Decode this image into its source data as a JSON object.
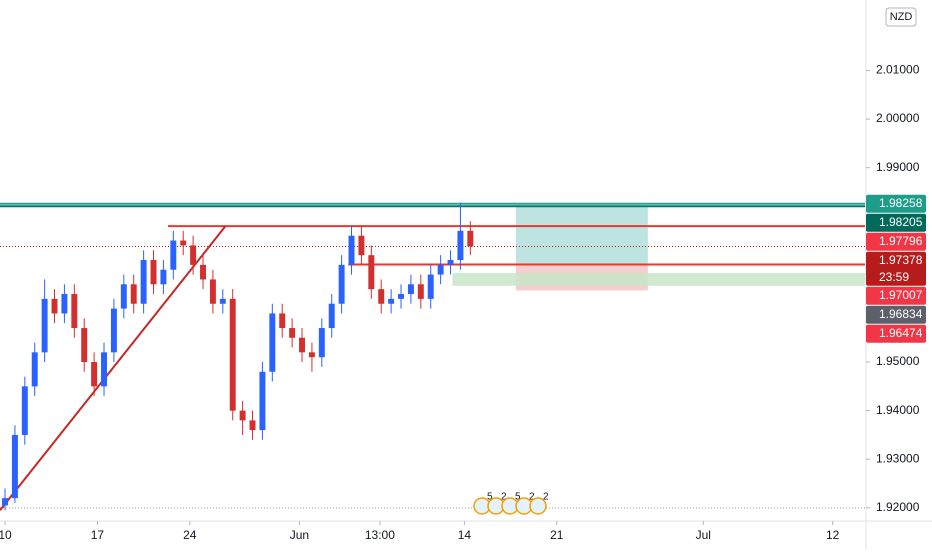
{
  "chart_data": {
    "type": "candlestick",
    "currency": "NZD",
    "x": [
      0,
      0.75,
      1.5,
      2.25,
      3,
      3.75,
      4.5,
      5.25,
      6,
      6.75,
      7.5,
      8.25,
      9,
      9.75,
      10.5,
      11.25,
      12,
      12.75,
      13.5,
      14.25,
      15,
      15.75,
      16.5,
      17.25,
      18,
      18.75,
      19.5,
      20.25,
      21,
      21.75,
      22.5,
      23.25,
      24,
      24.75,
      25.5,
      26.25,
      27,
      27.75,
      28.5,
      29.25,
      30,
      30.75,
      31.5,
      32.25,
      33,
      33.75,
      34.5,
      35.25
    ],
    "open": [
      1.9205,
      1.922,
      1.935,
      1.945,
      1.952,
      1.963,
      1.96,
      1.964,
      1.957,
      1.95,
      1.945,
      1.952,
      1.961,
      1.966,
      1.962,
      1.971,
      1.966,
      1.969,
      1.975,
      1.974,
      1.97,
      1.967,
      1.962,
      1.963,
      1.94,
      1.938,
      1.936,
      1.948,
      1.96,
      1.957,
      1.955,
      1.952,
      1.951,
      1.957,
      1.962,
      1.97,
      1.976,
      1.972,
      1.965,
      1.962,
      1.963,
      1.964,
      1.966,
      1.963,
      1.968,
      1.97,
      1.971,
      1.977
    ],
    "high": [
      1.924,
      1.937,
      1.947,
      1.954,
      1.967,
      1.965,
      1.966,
      1.966,
      1.959,
      1.952,
      1.954,
      1.963,
      1.968,
      1.968,
      1.973,
      1.973,
      1.971,
      1.977,
      1.977,
      1.976,
      1.972,
      1.969,
      1.965,
      1.965,
      1.942,
      1.94,
      1.95,
      1.962,
      1.962,
      1.959,
      1.957,
      1.954,
      1.959,
      1.964,
      1.972,
      1.978,
      1.978,
      1.974,
      1.967,
      1.965,
      1.966,
      1.968,
      1.968,
      1.97,
      1.972,
      1.973,
      1.9828,
      1.979
    ],
    "low": [
      1.9195,
      1.921,
      1.933,
      1.943,
      1.95,
      1.958,
      1.958,
      1.955,
      1.948,
      1.943,
      1.943,
      1.95,
      1.959,
      1.96,
      1.96,
      1.964,
      1.964,
      1.967,
      1.972,
      1.968,
      1.965,
      1.96,
      1.96,
      1.938,
      1.935,
      1.934,
      1.934,
      1.946,
      1.955,
      1.953,
      1.95,
      1.948,
      1.949,
      1.955,
      1.96,
      1.968,
      1.97,
      1.963,
      1.96,
      1.96,
      1.961,
      1.962,
      1.961,
      1.961,
      1.966,
      1.968,
      1.969,
      1.972
    ],
    "close": [
      1.922,
      1.935,
      1.945,
      1.952,
      1.963,
      1.96,
      1.964,
      1.957,
      1.95,
      1.945,
      1.952,
      1.961,
      1.966,
      1.962,
      1.971,
      1.966,
      1.969,
      1.975,
      1.974,
      1.97,
      1.967,
      1.962,
      1.963,
      1.94,
      1.938,
      1.936,
      1.948,
      1.96,
      1.957,
      1.955,
      1.952,
      1.951,
      1.957,
      1.962,
      1.97,
      1.976,
      1.972,
      1.965,
      1.962,
      1.963,
      1.964,
      1.966,
      1.963,
      1.968,
      1.97,
      1.971,
      1.977,
      1.9738
    ],
    "up_color": "#2962ff",
    "down_color": "#d32f2f",
    "xlim": [
      -0.38,
      65.15
    ],
    "xticks": [
      {
        "value": 0,
        "label": "10"
      },
      {
        "value": 7,
        "label": "17"
      },
      {
        "value": 14,
        "label": "24"
      },
      {
        "value": 22.3,
        "label": "Jun"
      },
      {
        "value": 28.4,
        "label": "13:00"
      },
      {
        "value": 34.8,
        "label": "14"
      },
      {
        "value": 41.8,
        "label": "21"
      },
      {
        "value": 52.9,
        "label": "Jul"
      },
      {
        "value": 62.7,
        "label": "12"
      }
    ],
    "ylim": [
      1.9175,
      2.0245
    ],
    "yticks": [
      {
        "value": 1.92,
        "label": "1.92000"
      },
      {
        "value": 1.93,
        "label": "1.93000"
      },
      {
        "value": 1.94,
        "label": "1.94000"
      },
      {
        "value": 1.95,
        "label": "1.95000"
      },
      {
        "value": 1.99,
        "label": "1.99000"
      },
      {
        "value": 2.0,
        "label": "2.00000"
      },
      {
        "value": 2.01,
        "label": "2.01000"
      }
    ],
    "lines": [
      {
        "color": "#26a69a",
        "x": [
          -0.38,
          65.15
        ],
        "y": [
          1.98258,
          1.98258
        ]
      },
      {
        "color": "#00796b",
        "x": [
          -0.38,
          65.15
        ],
        "y": [
          1.98205,
          1.98205
        ]
      },
      {
        "color": "#e53935",
        "x": [
          12.35,
          65.15
        ],
        "y": [
          1.97796,
          1.97796
        ]
      },
      {
        "color": "#e53935",
        "x": [
          26.0,
          65.15
        ],
        "y": [
          1.97007,
          1.97007
        ]
      },
      {
        "color": "#c62828",
        "x": [
          -0.38,
          16.7
        ],
        "y": [
          1.9195,
          1.97796
        ]
      }
    ],
    "zones": [
      {
        "color": "#b2dfdb",
        "x": [
          38.7,
          48.7
        ],
        "y": [
          1.98205,
          1.97007
        ]
      },
      {
        "color": "#f5c6c6",
        "x": [
          38.7,
          48.7
        ],
        "y": [
          1.97007,
          1.96474
        ]
      },
      {
        "color": "#c8e6c9",
        "x": [
          33.9,
          65.15
        ],
        "y": [
          1.96834,
          1.9657
        ]
      }
    ],
    "price_tags": [
      {
        "value": 1.98258,
        "color": "#1e9e8a"
      },
      {
        "value": 1.98205,
        "color": "#00695c"
      },
      {
        "value": 1.97796,
        "color": "#f23645"
      },
      {
        "value": 1.97378,
        "color": "#b71c1c",
        "countdown": "23:59"
      },
      {
        "value": 1.97007,
        "color": "#f23645"
      },
      {
        "value": 1.96834,
        "color": "#5d606b"
      },
      {
        "value": 1.96474,
        "color": "#f23645"
      }
    ],
    "events": [
      "5",
      "2",
      "5",
      "2",
      "2"
    ]
  }
}
